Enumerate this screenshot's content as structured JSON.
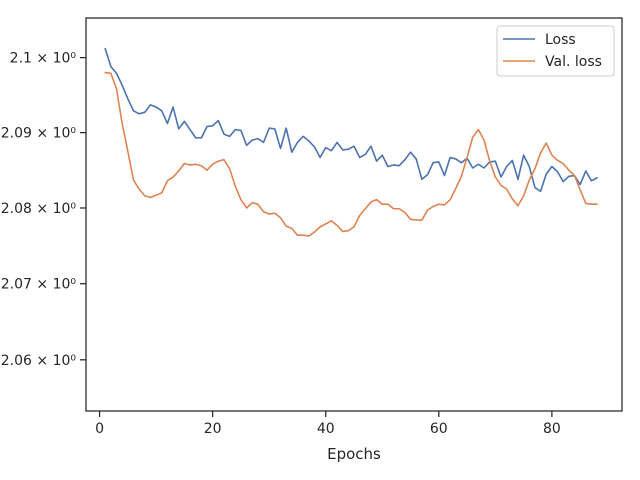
{
  "chart_data": {
    "type": "line",
    "title": "",
    "xlabel": "Epochs",
    "ylabel": "",
    "yscale": "log",
    "xlim": [
      -2.4,
      92.4
    ],
    "ylim": [
      2.0533,
      2.1053
    ],
    "x_ticks": [
      {
        "value": 0,
        "label": "0"
      },
      {
        "value": 20,
        "label": "20"
      },
      {
        "value": 40,
        "label": "40"
      },
      {
        "value": 60,
        "label": "60"
      },
      {
        "value": 80,
        "label": "80"
      }
    ],
    "y_ticks": [
      {
        "value": 2.06,
        "label": "2.06 × 10⁰"
      },
      {
        "value": 2.07,
        "label": "2.07 × 10⁰"
      },
      {
        "value": 2.08,
        "label": "2.08 × 10⁰"
      },
      {
        "value": 2.09,
        "label": "2.09 × 10⁰"
      },
      {
        "value": 2.1,
        "label": "2.1 × 10⁰"
      }
    ],
    "grid": false,
    "legend_position": "top-right",
    "x": [
      1,
      2,
      3,
      4,
      5,
      6,
      7,
      8,
      9,
      10,
      11,
      12,
      13,
      14,
      15,
      16,
      17,
      18,
      19,
      20,
      21,
      22,
      23,
      24,
      25,
      26,
      27,
      28,
      29,
      30,
      31,
      32,
      33,
      34,
      35,
      36,
      37,
      38,
      39,
      40,
      41,
      42,
      43,
      44,
      45,
      46,
      47,
      48,
      49,
      50,
      51,
      52,
      53,
      54,
      55,
      56,
      57,
      58,
      59,
      60,
      61,
      62,
      63,
      64,
      65,
      66,
      67,
      68,
      69,
      70,
      71,
      72,
      73,
      74,
      75,
      76,
      77,
      78,
      79,
      80,
      81,
      82,
      83,
      84,
      85,
      86,
      87,
      88
    ],
    "series": [
      {
        "name": "Loss",
        "color": "#4c72b0",
        "values": [
          2.1012,
          2.0988,
          2.0979,
          2.0963,
          2.0945,
          2.0929,
          2.0925,
          2.0927,
          2.0937,
          2.0934,
          2.0929,
          2.0912,
          2.0934,
          2.0905,
          2.0915,
          2.0904,
          2.0893,
          2.0893,
          2.0908,
          2.0909,
          2.0916,
          2.0898,
          2.0895,
          2.0904,
          2.0903,
          2.0883,
          2.089,
          2.0892,
          2.0887,
          2.0906,
          2.0905,
          2.0879,
          2.0906,
          2.0874,
          2.0887,
          2.0895,
          2.0889,
          2.0881,
          2.0867,
          2.088,
          2.0876,
          2.0887,
          2.0877,
          2.0878,
          2.0882,
          2.0867,
          2.0871,
          2.0882,
          2.0862,
          2.087,
          2.0855,
          2.0857,
          2.0856,
          2.0864,
          2.0874,
          2.0865,
          2.0838,
          2.0844,
          2.086,
          2.0861,
          2.0843,
          2.0867,
          2.0865,
          2.086,
          2.0866,
          2.0853,
          2.0858,
          2.0853,
          2.0861,
          2.0862,
          2.0841,
          2.0855,
          2.0863,
          2.0838,
          2.087,
          2.0855,
          2.0827,
          2.0822,
          2.0845,
          2.0855,
          2.0848,
          2.0835,
          2.0842,
          2.0843,
          2.0831,
          2.0849,
          2.0836,
          2.084
        ]
      },
      {
        "name": "Val. loss",
        "color": "#dd8452",
        "values": [
          2.098,
          2.0979,
          2.0958,
          2.0912,
          2.0875,
          2.0837,
          2.0825,
          2.0816,
          2.0814,
          2.0817,
          2.082,
          2.0836,
          2.0841,
          2.0849,
          2.0859,
          2.0857,
          2.0858,
          2.0856,
          2.085,
          2.0858,
          2.0862,
          2.0864,
          2.0852,
          2.0829,
          2.0811,
          2.08,
          2.0807,
          2.0805,
          2.0795,
          2.0792,
          2.0793,
          2.0787,
          2.0776,
          2.0773,
          2.0764,
          2.0764,
          2.0763,
          2.0768,
          2.0775,
          2.0779,
          2.0783,
          2.0777,
          2.0769,
          2.077,
          2.0775,
          2.079,
          2.0799,
          2.0808,
          2.0811,
          2.0805,
          2.0805,
          2.0799,
          2.0799,
          2.0794,
          2.0785,
          2.0784,
          2.0784,
          2.0797,
          2.0802,
          2.0805,
          2.0804,
          2.0811,
          2.0826,
          2.0842,
          2.0867,
          2.0894,
          2.0904,
          2.089,
          2.0862,
          2.0841,
          2.083,
          2.0825,
          2.0812,
          2.0803,
          2.0816,
          2.0837,
          2.0852,
          2.0873,
          2.0886,
          2.087,
          2.0863,
          2.0859,
          2.085,
          2.0843,
          2.0824,
          2.0806,
          2.0805,
          2.0805
        ]
      }
    ]
  }
}
